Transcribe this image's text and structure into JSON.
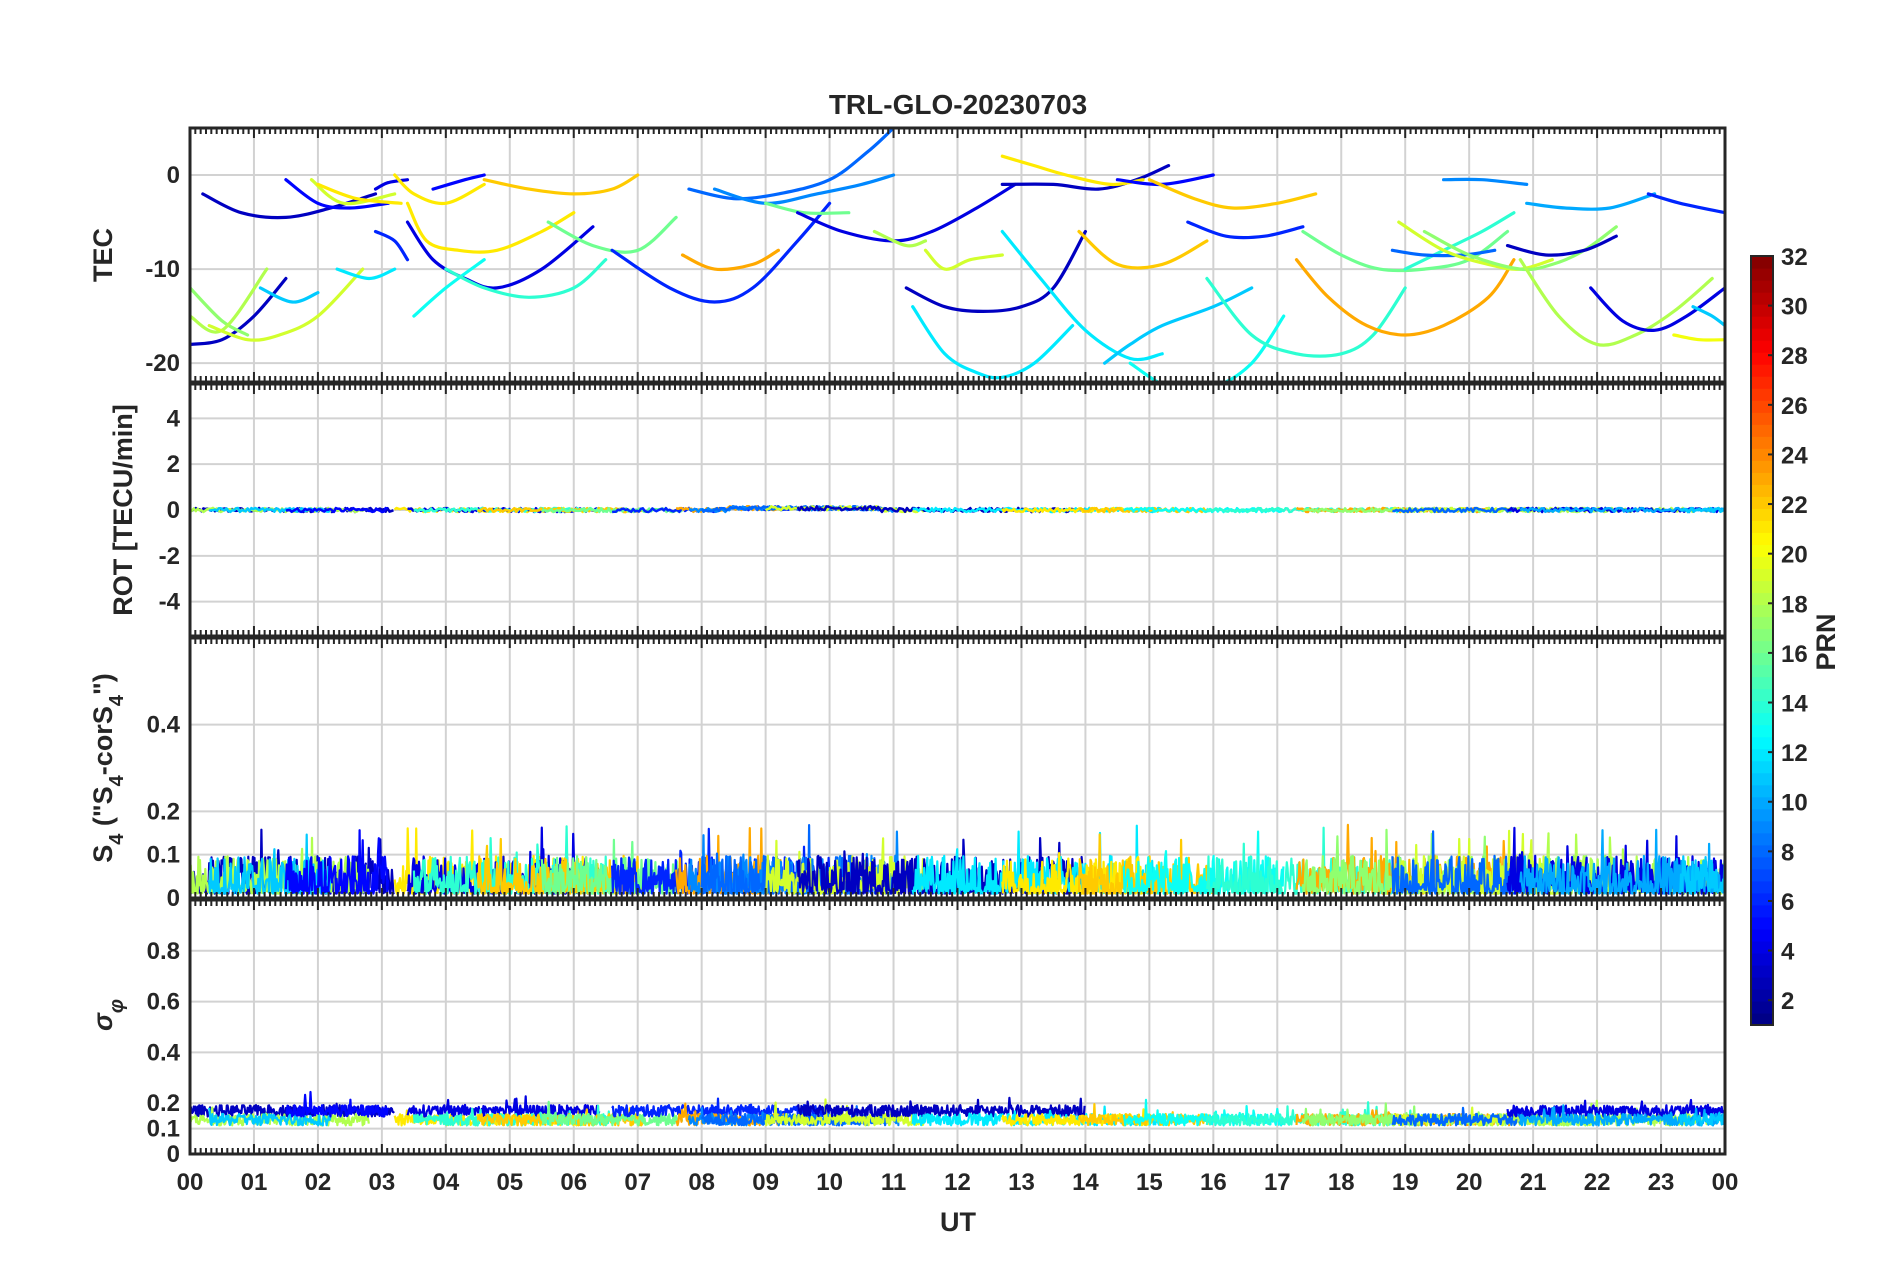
{
  "chart_data": {
    "title": "TRL-GLO-20230703",
    "xlabel": "UT",
    "x_ticks": [
      "00",
      "01",
      "02",
      "03",
      "04",
      "05",
      "06",
      "07",
      "08",
      "09",
      "10",
      "11",
      "12",
      "13",
      "14",
      "15",
      "16",
      "17",
      "18",
      "19",
      "20",
      "21",
      "22",
      "23",
      "00"
    ],
    "xlim_hours": [
      0,
      24
    ],
    "colormap": "jet",
    "colorbar": {
      "label": "PRN",
      "range": [
        1,
        32
      ],
      "ticks": [
        "32",
        "30",
        "28",
        "26",
        "24",
        "22",
        "20",
        "18",
        "16",
        "14",
        "12",
        "10",
        "8",
        "6",
        "4",
        "2"
      ],
      "tick_values": [
        32,
        30,
        28,
        26,
        24,
        22,
        20,
        18,
        16,
        14,
        12,
        10,
        8,
        6,
        4,
        2
      ]
    },
    "panels": [
      {
        "id": "tec",
        "type": "line",
        "ylabel": "TEC",
        "ylim": [
          -22,
          5
        ],
        "y_ticks": [
          "0",
          "-10",
          "-20"
        ],
        "y_tick_values": [
          0,
          -10,
          -20
        ],
        "series": [
          {
            "prn": 3,
            "x": [
              0.0,
              0.5,
              1.0,
              1.5
            ],
            "y": [
              -18,
              -17.5,
              -15,
              -11
            ]
          },
          {
            "prn": 17,
            "x": [
              0.0,
              0.5,
              0.9
            ],
            "y": [
              -12,
              -15.5,
              -17
            ]
          },
          {
            "prn": 18,
            "x": [
              0.0,
              0.5,
              1.2
            ],
            "y": [
              -15,
              -16.5,
              -10
            ]
          },
          {
            "prn": 19,
            "x": [
              0.3,
              0.9,
              1.4,
              2.0,
              2.7
            ],
            "y": [
              -16,
              -17.5,
              -17,
              -15,
              -10
            ]
          },
          {
            "prn": 11,
            "x": [
              1.1,
              1.6,
              2.0
            ],
            "y": [
              -12,
              -13.5,
              -12.5
            ]
          },
          {
            "prn": 3,
            "x": [
              0.2,
              0.8,
              1.5,
              2.2,
              2.9
            ],
            "y": [
              -2,
              -4,
              -4.5,
              -3.5,
              -2
            ]
          },
          {
            "prn": 5,
            "x": [
              1.5,
              2.0,
              2.5,
              3.1
            ],
            "y": [
              -0.5,
              -3,
              -3.5,
              -3
            ]
          },
          {
            "prn": 19,
            "x": [
              1.9,
              2.4,
              3.2
            ],
            "y": [
              -0.5,
              -3,
              -2
            ]
          },
          {
            "prn": 21,
            "x": [
              2.0,
              2.6,
              3.3
            ],
            "y": [
              -1,
              -2.5,
              -3
            ]
          },
          {
            "prn": 12,
            "x": [
              2.3,
              2.8,
              3.2
            ],
            "y": [
              -10,
              -11,
              -10
            ]
          },
          {
            "prn": 4,
            "x": [
              2.9,
              3.1,
              3.4
            ],
            "y": [
              -1.5,
              -0.8,
              -0.5
            ]
          },
          {
            "prn": 6,
            "x": [
              2.9,
              3.2,
              3.4
            ],
            "y": [
              -6,
              -7,
              -9
            ]
          },
          {
            "prn": 21,
            "x": [
              3.2,
              3.5,
              4.0,
              4.6
            ],
            "y": [
              0,
              -2,
              -3,
              -1
            ]
          },
          {
            "prn": 21,
            "x": [
              3.4,
              3.7,
              4.2,
              4.8,
              5.5,
              6.0
            ],
            "y": [
              -3,
              -7,
              -8,
              -8,
              -6,
              -4
            ]
          },
          {
            "prn": 4,
            "x": [
              3.4,
              3.8,
              4.3,
              4.8,
              5.5,
              6.3
            ],
            "y": [
              -5,
              -9,
              -11,
              -12,
              -10,
              -5.5
            ]
          },
          {
            "prn": 13,
            "x": [
              3.5,
              4.0,
              4.6
            ],
            "y": [
              -15,
              -12,
              -9
            ]
          },
          {
            "prn": 14,
            "x": [
              4.0,
              4.6,
              5.3,
              6.0,
              6.5
            ],
            "y": [
              -10,
              -12,
              -13,
              -12,
              -9
            ]
          },
          {
            "prn": 5,
            "x": [
              3.8,
              4.3,
              4.6
            ],
            "y": [
              -1.5,
              -0.5,
              0
            ]
          },
          {
            "prn": 22,
            "x": [
              4.6,
              5.3,
              6.0,
              6.6,
              7.0
            ],
            "y": [
              -0.5,
              -1.5,
              -2,
              -1.5,
              0
            ]
          },
          {
            "prn": 16,
            "x": [
              5.6,
              6.3,
              7.0,
              7.6
            ],
            "y": [
              -5,
              -7.5,
              -8,
              -4.5
            ]
          },
          {
            "prn": 6,
            "x": [
              6.6,
              7.5,
              8.2,
              8.8,
              9.5,
              10.0
            ],
            "y": [
              -8,
              -12,
              -13.5,
              -12,
              -7,
              -3
            ]
          },
          {
            "prn": 23,
            "x": [
              7.7,
              8.2,
              8.8,
              9.2
            ],
            "y": [
              -8.5,
              -10,
              -9.5,
              -8
            ]
          },
          {
            "prn": 8,
            "x": [
              7.8,
              8.5,
              9.2,
              10.0,
              10.6,
              11.0
            ],
            "y": [
              -1.5,
              -2.5,
              -2,
              -0.5,
              2.5,
              5
            ]
          },
          {
            "prn": 9,
            "x": [
              8.2,
              9.0,
              9.8,
              10.5,
              11.0
            ],
            "y": [
              -1.5,
              -3,
              -2,
              -1,
              0
            ]
          },
          {
            "prn": 16,
            "x": [
              9.0,
              9.6,
              10.3
            ],
            "y": [
              -3,
              -4,
              -4
            ]
          },
          {
            "prn": 4,
            "x": [
              9.5,
              10.2,
              11.0,
              11.6,
              12.3,
              12.9
            ],
            "y": [
              -4,
              -6,
              -7,
              -6,
              -3.5,
              -1
            ]
          },
          {
            "prn": 18,
            "x": [
              10.7,
              11.2,
              11.5
            ],
            "y": [
              -6,
              -7.5,
              -7
            ]
          },
          {
            "prn": 19,
            "x": [
              11.5,
              11.8,
              12.2,
              12.7
            ],
            "y": [
              -8,
              -10,
              -9,
              -8.5
            ]
          },
          {
            "prn": 3,
            "x": [
              11.2,
              11.8,
              12.4,
              13.0,
              13.5,
              14.0
            ],
            "y": [
              -12,
              -14,
              -14.5,
              -14,
              -12,
              -6
            ]
          },
          {
            "prn": 12,
            "x": [
              11.3,
              11.8,
              12.3,
              12.7,
              13.2,
              13.8
            ],
            "y": [
              -14,
              -19,
              -21,
              -21.5,
              -20,
              -16
            ]
          },
          {
            "prn": 12,
            "x": [
              12.7,
              13.3,
              14.0,
              14.7,
              15.2
            ],
            "y": [
              -6,
              -11,
              -16.5,
              -19.5,
              -19
            ]
          },
          {
            "prn": 11,
            "x": [
              14.3,
              14.7,
              15.2,
              16.0,
              16.6
            ],
            "y": [
              -20,
              -18,
              -16,
              -14,
              -12
            ]
          },
          {
            "prn": 3,
            "x": [
              12.7,
              13.5,
              14.2,
              14.8,
              15.3
            ],
            "y": [
              -1,
              -1,
              -1.5,
              -0.5,
              1
            ]
          },
          {
            "prn": 21,
            "x": [
              12.7,
              13.2,
              13.7,
              14.4,
              14.9
            ],
            "y": [
              2,
              1,
              0,
              -1,
              -0.5
            ]
          },
          {
            "prn": 22,
            "x": [
              13.9,
              14.5,
              15.2,
              15.9
            ],
            "y": [
              -6,
              -9.5,
              -9.5,
              -7
            ]
          },
          {
            "prn": 5,
            "x": [
              14.5,
              15.2,
              16.0
            ],
            "y": [
              -0.5,
              -1,
              0
            ]
          },
          {
            "prn": 13,
            "x": [
              14.7,
              15.3,
              16.0,
              16.6,
              17.1
            ],
            "y": [
              -20,
              -22.5,
              -22.5,
              -20,
              -15
            ]
          },
          {
            "prn": 14,
            "x": [
              15.9,
              16.6,
              17.3,
              18.0,
              18.5,
              19.0
            ],
            "y": [
              -11,
              -17,
              -19,
              -19,
              -17,
              -12
            ]
          },
          {
            "prn": 22,
            "x": [
              15.0,
              15.7,
              16.3,
              17.0,
              17.6
            ],
            "y": [
              -0.5,
              -2.5,
              -3.5,
              -3,
              -2
            ]
          },
          {
            "prn": 6,
            "x": [
              15.6,
              16.2,
              16.8,
              17.4
            ],
            "y": [
              -5,
              -6.5,
              -6.5,
              -5.5
            ]
          },
          {
            "prn": 16,
            "x": [
              17.4,
              18.0,
              18.6,
              19.3,
              20.0,
              20.6
            ],
            "y": [
              -6,
              -8.5,
              -10,
              -10,
              -9,
              -6
            ]
          },
          {
            "prn": 23,
            "x": [
              17.3,
              17.8,
              18.4,
              19.0,
              19.6,
              20.3,
              20.7
            ],
            "y": [
              -9,
              -13,
              -16,
              -17,
              -16,
              -13,
              -9
            ]
          },
          {
            "prn": 14,
            "x": [
              19.0,
              19.6,
              20.2,
              20.7
            ],
            "y": [
              -10,
              -8,
              -6,
              -4
            ]
          },
          {
            "prn": 8,
            "x": [
              18.8,
              19.3,
              19.9,
              20.4
            ],
            "y": [
              -8,
              -8.5,
              -8.5,
              -8
            ]
          },
          {
            "prn": 19,
            "x": [
              18.9,
              19.6,
              20.3,
              20.8,
              21.3
            ],
            "y": [
              -5,
              -8,
              -9.5,
              -10,
              -9
            ]
          },
          {
            "prn": 17,
            "x": [
              19.3,
              20.0,
              20.8,
              21.3,
              21.8,
              22.3
            ],
            "y": [
              -6,
              -8.5,
              -10,
              -9.5,
              -8,
              -5.5
            ]
          },
          {
            "prn": 9,
            "x": [
              19.6,
              20.2,
              20.9
            ],
            "y": [
              -0.5,
              -0.5,
              -1
            ]
          },
          {
            "prn": 3,
            "x": [
              20.6,
              21.2,
              21.8,
              22.3
            ],
            "y": [
              -7.5,
              -8.5,
              -8,
              -6.5
            ]
          },
          {
            "prn": 18,
            "x": [
              20.8,
              21.4,
              22.0,
              22.6,
              23.2,
              23.8
            ],
            "y": [
              -9,
              -15,
              -18,
              -17,
              -14.5,
              -11
            ]
          },
          {
            "prn": 10,
            "x": [
              20.9,
              21.5,
              22.2,
              22.9
            ],
            "y": [
              -3,
              -3.5,
              -3.5,
              -2
            ]
          },
          {
            "prn": 4,
            "x": [
              21.9,
              22.4,
              22.9,
              23.4,
              24.0
            ],
            "y": [
              -12,
              -15.5,
              -16.5,
              -15,
              -12
            ]
          },
          {
            "prn": 6,
            "x": [
              22.8,
              23.3,
              24.0
            ],
            "y": [
              -2,
              -3,
              -4
            ]
          },
          {
            "prn": 20,
            "x": [
              23.2,
              23.6,
              24.0
            ],
            "y": [
              -17,
              -17.5,
              -17.5
            ]
          },
          {
            "prn": 11,
            "x": [
              23.5,
              23.8,
              24.0
            ],
            "y": [
              -14,
              -15,
              -16
            ]
          }
        ]
      },
      {
        "id": "rot",
        "type": "line",
        "ylabel": "ROT [TECU/min]",
        "ylim": [
          -5.5,
          5.5
        ],
        "y_ticks": [
          "4",
          "2",
          "0",
          "-2",
          "-4"
        ],
        "y_tick_values": [
          4,
          2,
          0,
          -2,
          -4
        ],
        "typical_range": [
          -0.3,
          0.35
        ]
      },
      {
        "id": "s4",
        "type": "line",
        "ylabel": "S4 (\"S4-corS4\")",
        "ylabel_parts": {
          "s": "S",
          "sub": "4",
          "open": " (\"",
          "s2": "S",
          "sub2": "4",
          "mid": "-corS",
          "sub3": "4",
          "close": "\")"
        },
        "ylim": [
          0,
          0.6
        ],
        "y_ticks": [
          "0.4",
          "0.2",
          "0.1",
          "0"
        ],
        "y_tick_values": [
          0.4,
          0.2,
          0.1,
          0
        ],
        "typical_range": [
          0,
          0.21
        ]
      },
      {
        "id": "sigma_phi",
        "type": "line",
        "ylabel": "σφ",
        "ylabel_parts": {
          "main": "σ",
          "sub": "φ"
        },
        "ylim": [
          0,
          1
        ],
        "y_ticks": [
          "0.8",
          "0.6",
          "0.4",
          "0.2",
          "0.1",
          "0"
        ],
        "y_tick_values": [
          0.8,
          0.6,
          0.4,
          0.2,
          0.1,
          0
        ],
        "typical_range": [
          0.08,
          0.28
        ]
      }
    ]
  }
}
